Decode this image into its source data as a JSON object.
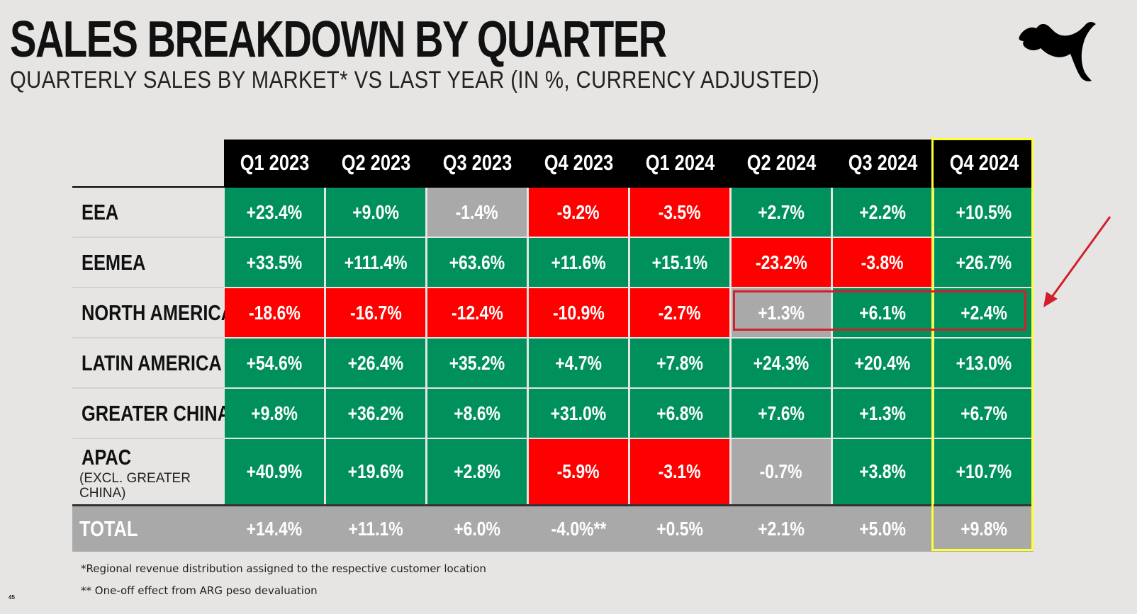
{
  "title": "SALES BREAKDOWN BY QUARTER",
  "subtitle": "QUARTERLY SALES BY MARKET* VS LAST YEAR (IN %, CURRENCY ADJUSTED)",
  "logo_icon": "puma-logo-icon",
  "colors": {
    "positive": "#00905b",
    "negative": "#ff0000",
    "neutral": "#a9a9a9",
    "highlight_column": "#ffff33",
    "highlight_box": "#d0202a"
  },
  "quarters": [
    "Q1 2023",
    "Q2 2023",
    "Q3 2023",
    "Q4 2023",
    "Q1 2024",
    "Q2 2024",
    "Q3 2024",
    "Q4 2024"
  ],
  "rows": [
    {
      "label": "EEA",
      "sublabel": "",
      "values": [
        "+23.4%",
        "+9.0%",
        "-1.4%",
        "-9.2%",
        "-3.5%",
        "+2.7%",
        "+2.2%",
        "+10.5%"
      ],
      "status": [
        "green",
        "green",
        "grey",
        "red",
        "red",
        "green",
        "green",
        "green"
      ]
    },
    {
      "label": "EEMEA",
      "sublabel": "",
      "values": [
        "+33.5%",
        "+111.4%",
        "+63.6%",
        "+11.6%",
        "+15.1%",
        "-23.2%",
        "-3.8%",
        "+26.7%"
      ],
      "status": [
        "green",
        "green",
        "green",
        "green",
        "green",
        "red",
        "red",
        "green"
      ]
    },
    {
      "label": "NORTH AMERICA",
      "sublabel": "",
      "values": [
        "-18.6%",
        "-16.7%",
        "-12.4%",
        "-10.9%",
        "-2.7%",
        "+1.3%",
        "+6.1%",
        "+2.4%"
      ],
      "status": [
        "red",
        "red",
        "red",
        "red",
        "red",
        "grey",
        "green",
        "green"
      ]
    },
    {
      "label": "LATIN AMERICA",
      "sublabel": "",
      "values": [
        "+54.6%",
        "+26.4%",
        "+35.2%",
        "+4.7%",
        "+7.8%",
        "+24.3%",
        "+20.4%",
        "+13.0%"
      ],
      "status": [
        "green",
        "green",
        "green",
        "green",
        "green",
        "green",
        "green",
        "green"
      ]
    },
    {
      "label": "GREATER CHINA",
      "sublabel": "",
      "values": [
        "+9.8%",
        "+36.2%",
        "+8.6%",
        "+31.0%",
        "+6.8%",
        "+7.6%",
        "+1.3%",
        "+6.7%"
      ],
      "status": [
        "green",
        "green",
        "green",
        "green",
        "green",
        "green",
        "green",
        "green"
      ]
    },
    {
      "label": "APAC",
      "sublabel": "(EXCL. GREATER CHINA)",
      "values": [
        "+40.9%",
        "+19.6%",
        "+2.8%",
        "-5.9%",
        "-3.1%",
        "-0.7%",
        "+3.8%",
        "+10.7%"
      ],
      "status": [
        "green",
        "green",
        "green",
        "red",
        "red",
        "grey",
        "green",
        "green"
      ]
    }
  ],
  "total": {
    "label": "TOTAL",
    "values": [
      "+14.4%",
      "+11.1%",
      "+6.0%",
      "-4.0%**",
      "+0.5%",
      "+2.1%",
      "+5.0%",
      "+9.8%"
    ]
  },
  "footnotes": [
    "*Regional revenue distribution assigned to the respective customer location",
    "** One-off effect from ARG peso devaluation"
  ],
  "page_number": "45"
}
